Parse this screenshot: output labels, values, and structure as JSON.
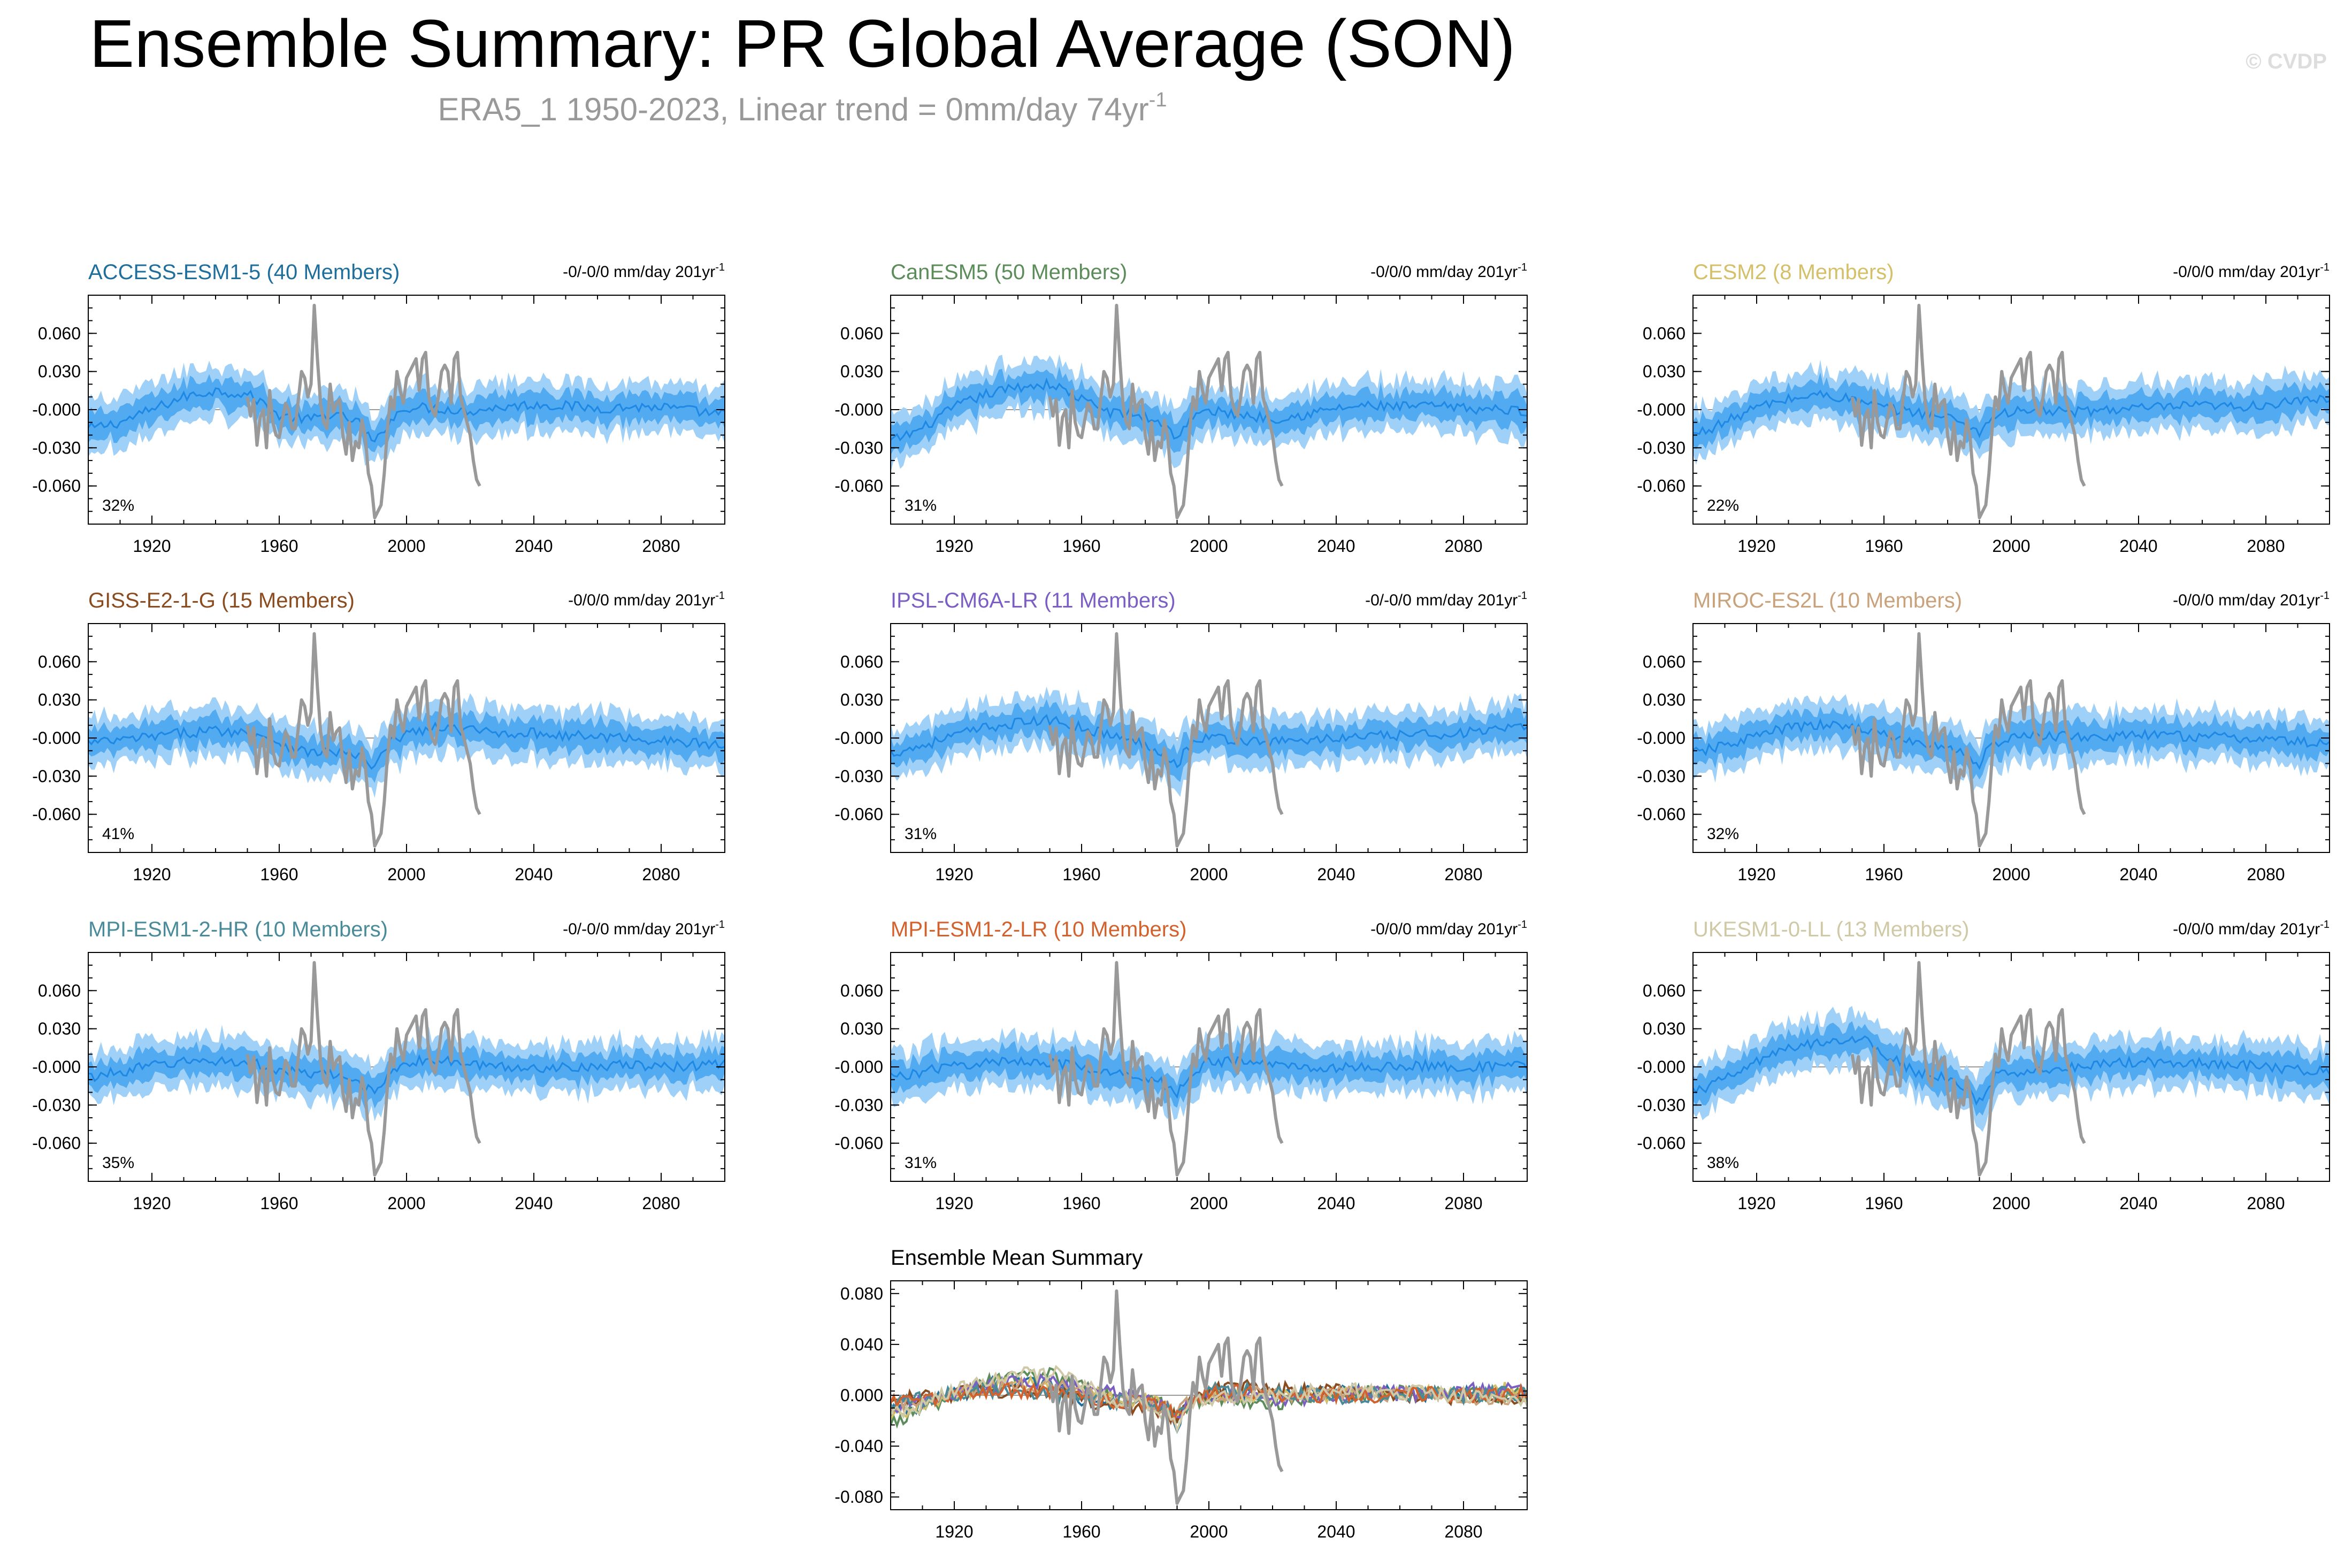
{
  "figure": {
    "title": "Ensemble Summary: PR Global Average (SON)",
    "subtitle_main": "ERA5_1 1950-2023, Linear trend = 0mm/day 74yr",
    "subtitle_sup": "-1",
    "watermark": "© CVDP",
    "trend_units": "mm/day 201yr",
    "trend_sup": "-1",
    "colors": {
      "obs_line": "#999999",
      "spread_outer": "#9fd0f7",
      "spread_inner": "#52aaf0",
      "ens_mean": "#1e88e5",
      "zero_line": "#9a9a9a"
    }
  },
  "chart_data": [
    {
      "type": "area",
      "title": "ACCESS-ESM1-5 (40 Members)",
      "title_color": "#1f6e9c",
      "trend": "-0/-0/0",
      "percent": "32%",
      "x_range": [
        1900,
        2100
      ],
      "y_range": [
        -0.09,
        0.09
      ],
      "y_ticks": [
        "0.060",
        "0.030",
        "-0.000",
        "-0.030",
        "-0.060"
      ],
      "y_tick_values": [
        0.06,
        0.03,
        0,
        -0.03,
        -0.06
      ],
      "x_ticks": [
        1920,
        1960,
        2000,
        2040,
        2080
      ],
      "ensemble_mean": {
        "x": [
          1900,
          1910,
          1920,
          1930,
          1940,
          1950,
          1955,
          1960,
          1970,
          1975,
          1980,
          1985,
          1990,
          1992,
          1995,
          2000,
          2010,
          2020,
          2030,
          2040,
          2050,
          2060,
          2070,
          2080,
          2090,
          2100
        ],
        "y": [
          -0.015,
          -0.01,
          0,
          0.01,
          0.015,
          0.012,
          0.005,
          -0.005,
          -0.008,
          -0.004,
          -0.006,
          -0.01,
          -0.028,
          -0.018,
          -0.008,
          0.002,
          0.001,
          -0.001,
          0.002,
          0.004,
          0.003,
          0.001,
          0.002,
          0.002,
          -0.001,
          -0.004
        ]
      }
    },
    {
      "type": "area",
      "title": "CanESM5 (50 Members)",
      "title_color": "#5b8c5a",
      "trend": "-0/0/0",
      "percent": "31%",
      "x_range": [
        1900,
        2100
      ],
      "y_range": [
        -0.09,
        0.09
      ],
      "y_ticks": [
        "0.060",
        "0.030",
        "-0.000",
        "-0.030",
        "-0.060"
      ],
      "y_tick_values": [
        0.06,
        0.03,
        0,
        -0.03,
        -0.06
      ],
      "x_ticks": [
        1920,
        1960,
        2000,
        2040,
        2080
      ],
      "ensemble_mean": {
        "x": [
          1900,
          1910,
          1920,
          1930,
          1940,
          1950,
          1955,
          1960,
          1970,
          1975,
          1980,
          1985,
          1990,
          1992,
          1995,
          2000,
          2010,
          2020,
          2030,
          2040,
          2050,
          2060,
          2070,
          2080,
          2090,
          2100
        ],
        "y": [
          -0.025,
          -0.015,
          0.002,
          0.012,
          0.018,
          0.02,
          0.015,
          0.008,
          -0.003,
          -0.003,
          -0.006,
          -0.01,
          -0.022,
          -0.014,
          -0.006,
          -0.001,
          -0.004,
          -0.007,
          -0.004,
          0.001,
          0.003,
          0.002,
          0.003,
          0.001,
          0.0,
          -0.001
        ]
      }
    },
    {
      "type": "area",
      "title": "CESM2 (8 Members)",
      "title_color": "#d4c06a",
      "trend": "-0/0/0",
      "percent": "22%",
      "x_range": [
        1900,
        2100
      ],
      "y_range": [
        -0.09,
        0.09
      ],
      "y_ticks": [
        "0.060",
        "0.030",
        "-0.000",
        "-0.030",
        "-0.060"
      ],
      "y_tick_values": [
        0.06,
        0.03,
        0,
        -0.03,
        -0.06
      ],
      "x_ticks": [
        1920,
        1960,
        2000,
        2040,
        2080
      ],
      "ensemble_mean": {
        "x": [
          1900,
          1910,
          1920,
          1930,
          1940,
          1950,
          1955,
          1960,
          1970,
          1975,
          1980,
          1985,
          1990,
          1992,
          1995,
          2000,
          2010,
          2020,
          2030,
          2040,
          2050,
          2060,
          2070,
          2080,
          2090,
          2100
        ],
        "y": [
          -0.02,
          -0.01,
          0.002,
          0.008,
          0.012,
          0.008,
          0.004,
          0.001,
          -0.002,
          -0.004,
          -0.006,
          -0.01,
          -0.018,
          -0.012,
          -0.004,
          -0.002,
          -0.001,
          -0.002,
          0.0,
          0.001,
          0.002,
          0.003,
          0.002,
          0.004,
          0.006,
          0.009
        ]
      }
    },
    {
      "type": "area",
      "title": "GISS-E2-1-G (15 Members)",
      "title_color": "#8a4b1f",
      "trend": "-0/0/0",
      "percent": "41%",
      "x_range": [
        1900,
        2100
      ],
      "y_range": [
        -0.09,
        0.09
      ],
      "y_ticks": [
        "0.060",
        "0.030",
        "-0.000",
        "-0.030",
        "-0.060"
      ],
      "y_tick_values": [
        0.06,
        0.03,
        0,
        -0.03,
        -0.06
      ],
      "x_ticks": [
        1920,
        1960,
        2000,
        2040,
        2080
      ],
      "ensemble_mean": {
        "x": [
          1900,
          1910,
          1920,
          1930,
          1940,
          1950,
          1955,
          1960,
          1970,
          1975,
          1980,
          1985,
          1990,
          1992,
          1995,
          2000,
          2010,
          2020,
          2030,
          2040,
          2050,
          2060,
          2070,
          2080,
          2090,
          2100
        ],
        "y": [
          -0.004,
          -0.002,
          0.001,
          0.004,
          0.006,
          0.004,
          0.002,
          -0.004,
          -0.012,
          -0.01,
          -0.012,
          -0.014,
          -0.024,
          -0.014,
          -0.004,
          0.004,
          0.008,
          0.006,
          0.004,
          0.004,
          0.002,
          0.001,
          0.0,
          -0.002,
          -0.004,
          -0.006
        ]
      }
    },
    {
      "type": "area",
      "title": "IPSL-CM6A-LR (11 Members)",
      "title_color": "#7b5ec4",
      "trend": "-0/-0/0",
      "percent": "31%",
      "x_range": [
        1900,
        2100
      ],
      "y_range": [
        -0.09,
        0.09
      ],
      "y_ticks": [
        "0.060",
        "0.030",
        "-0.000",
        "-0.030",
        "-0.060"
      ],
      "y_tick_values": [
        0.06,
        0.03,
        0,
        -0.03,
        -0.06
      ],
      "x_ticks": [
        1920,
        1960,
        2000,
        2040,
        2080
      ],
      "ensemble_mean": {
        "x": [
          1900,
          1910,
          1920,
          1930,
          1940,
          1950,
          1955,
          1960,
          1970,
          1975,
          1980,
          1985,
          1990,
          1992,
          1995,
          2000,
          2010,
          2020,
          2030,
          2040,
          2050,
          2060,
          2070,
          2080,
          2090,
          2100
        ],
        "y": [
          -0.012,
          -0.006,
          0.002,
          0.008,
          0.012,
          0.014,
          0.012,
          0.008,
          0.002,
          -0.002,
          -0.005,
          -0.01,
          -0.022,
          -0.012,
          -0.004,
          0.001,
          -0.002,
          -0.003,
          -0.002,
          0.0,
          0.001,
          0.002,
          0.003,
          0.004,
          0.006,
          0.008
        ]
      }
    },
    {
      "type": "area",
      "title": "MIROC-ES2L (10 Members)",
      "title_color": "#c9a17a",
      "trend": "-0/0/0",
      "percent": "32%",
      "x_range": [
        1900,
        2100
      ],
      "y_range": [
        -0.09,
        0.09
      ],
      "y_ticks": [
        "0.060",
        "0.030",
        "-0.000",
        "-0.030",
        "-0.060"
      ],
      "y_tick_values": [
        0.06,
        0.03,
        0,
        -0.03,
        -0.06
      ],
      "x_ticks": [
        1920,
        1960,
        2000,
        2040,
        2080
      ],
      "ensemble_mean": {
        "x": [
          1900,
          1910,
          1920,
          1930,
          1940,
          1950,
          1955,
          1960,
          1970,
          1975,
          1980,
          1985,
          1990,
          1992,
          1995,
          2000,
          2010,
          2020,
          2030,
          2040,
          2050,
          2060,
          2070,
          2080,
          2090,
          2100
        ],
        "y": [
          -0.012,
          -0.006,
          0.002,
          0.008,
          0.01,
          0.009,
          0.006,
          0.002,
          -0.004,
          -0.006,
          -0.008,
          -0.012,
          -0.02,
          -0.012,
          -0.004,
          0.0,
          0.002,
          0.001,
          0.001,
          0.002,
          0.002,
          0.001,
          0.0,
          -0.001,
          -0.003,
          -0.005
        ]
      }
    },
    {
      "type": "area",
      "title": "MPI-ESM1-2-HR (10 Members)",
      "title_color": "#4a8b9a",
      "trend": "-0/-0/0",
      "percent": "35%",
      "x_range": [
        1900,
        2100
      ],
      "y_range": [
        -0.09,
        0.09
      ],
      "y_ticks": [
        "0.060",
        "0.030",
        "-0.000",
        "-0.030",
        "-0.060"
      ],
      "y_tick_values": [
        0.06,
        0.03,
        0,
        -0.03,
        -0.06
      ],
      "x_ticks": [
        1920,
        1960,
        2000,
        2040,
        2080
      ],
      "ensemble_mean": {
        "x": [
          1900,
          1910,
          1920,
          1930,
          1940,
          1950,
          1955,
          1960,
          1970,
          1975,
          1980,
          1985,
          1990,
          1992,
          1995,
          2000,
          2010,
          2020,
          2030,
          2040,
          2050,
          2060,
          2070,
          2080,
          2090,
          2100
        ],
        "y": [
          -0.008,
          -0.004,
          0.001,
          0.004,
          0.005,
          0.003,
          0.001,
          -0.003,
          -0.006,
          -0.006,
          -0.008,
          -0.012,
          -0.022,
          -0.012,
          -0.004,
          0.004,
          0.005,
          0.002,
          0.0,
          -0.001,
          0.0,
          0.001,
          0.001,
          0.0,
          0.001,
          0.002
        ]
      }
    },
    {
      "type": "area",
      "title": "MPI-ESM1-2-LR (10 Members)",
      "title_color": "#d2622d",
      "trend": "-0/0/0",
      "percent": "31%",
      "x_range": [
        1900,
        2100
      ],
      "y_range": [
        -0.09,
        0.09
      ],
      "y_ticks": [
        "0.060",
        "0.030",
        "-0.000",
        "-0.030",
        "-0.060"
      ],
      "y_tick_values": [
        0.06,
        0.03,
        0,
        -0.03,
        -0.06
      ],
      "x_ticks": [
        1920,
        1960,
        2000,
        2040,
        2080
      ],
      "ensemble_mean": {
        "x": [
          1900,
          1910,
          1920,
          1930,
          1940,
          1950,
          1955,
          1960,
          1970,
          1975,
          1980,
          1985,
          1990,
          1992,
          1995,
          2000,
          2010,
          2020,
          2030,
          2040,
          2050,
          2060,
          2070,
          2080,
          2090,
          2100
        ],
        "y": [
          -0.008,
          -0.004,
          0.001,
          0.003,
          0.005,
          0.004,
          0.002,
          -0.002,
          -0.006,
          -0.005,
          -0.008,
          -0.012,
          -0.022,
          -0.012,
          -0.004,
          0.004,
          0.004,
          0.002,
          0.0,
          -0.001,
          0.0,
          0.0,
          0.001,
          0.0,
          0.0,
          0.001
        ]
      }
    },
    {
      "type": "area",
      "title": "UKESM1-0-LL (13 Members)",
      "title_color": "#cfc9a6",
      "trend": "-0/0/0",
      "percent": "38%",
      "x_range": [
        1900,
        2100
      ],
      "y_range": [
        -0.09,
        0.09
      ],
      "y_ticks": [
        "0.060",
        "0.030",
        "-0.000",
        "-0.030",
        "-0.060"
      ],
      "y_tick_values": [
        0.06,
        0.03,
        0,
        -0.03,
        -0.06
      ],
      "x_ticks": [
        1920,
        1960,
        2000,
        2040,
        2080
      ],
      "ensemble_mean": {
        "x": [
          1900,
          1910,
          1920,
          1930,
          1940,
          1950,
          1955,
          1960,
          1970,
          1975,
          1980,
          1985,
          1990,
          1992,
          1995,
          2000,
          2010,
          2020,
          2030,
          2040,
          2050,
          2060,
          2070,
          2080,
          2090,
          2100
        ],
        "y": [
          -0.02,
          -0.01,
          0.004,
          0.014,
          0.02,
          0.022,
          0.02,
          0.01,
          -0.004,
          -0.006,
          -0.01,
          -0.016,
          -0.028,
          -0.018,
          -0.008,
          -0.004,
          -0.002,
          0.0,
          0.003,
          0.004,
          0.004,
          0.003,
          0.002,
          0.0,
          -0.002,
          -0.004
        ]
      }
    },
    {
      "type": "line",
      "title": "Ensemble Mean Summary",
      "title_color": "#000000",
      "x_range": [
        1900,
        2100
      ],
      "y_range": [
        -0.09,
        0.09
      ],
      "y_ticks": [
        "0.080",
        "0.040",
        "0.000",
        "-0.040",
        "-0.080"
      ],
      "y_tick_values": [
        0.08,
        0.04,
        0,
        -0.04,
        -0.08
      ],
      "x_ticks": [
        1920,
        1960,
        2000,
        2040,
        2080
      ],
      "series_colors": [
        "#1f6e9c",
        "#5b8c5a",
        "#d4c06a",
        "#8a4b1f",
        "#7b5ec4",
        "#c9a17a",
        "#4a8b9a",
        "#d2622d",
        "#cfc9a6"
      ]
    }
  ],
  "observations": {
    "name": "ERA5_1",
    "x": [
      1950,
      1951,
      1952,
      1953,
      1954,
      1955,
      1956,
      1957,
      1958,
      1959,
      1960,
      1961,
      1962,
      1963,
      1964,
      1965,
      1966,
      1967,
      1968,
      1969,
      1970,
      1971,
      1972,
      1973,
      1974,
      1975,
      1976,
      1977,
      1978,
      1979,
      1980,
      1981,
      1982,
      1983,
      1984,
      1985,
      1986,
      1987,
      1988,
      1989,
      1990,
      1991,
      1992,
      1993,
      1994,
      1995,
      1996,
      1997,
      1998,
      1999,
      2000,
      2001,
      2002,
      2003,
      2004,
      2005,
      2006,
      2007,
      2008,
      2009,
      2010,
      2011,
      2012,
      2013,
      2014,
      2015,
      2016,
      2017,
      2018,
      2019,
      2020,
      2021,
      2022,
      2023
    ],
    "y": [
      0.01,
      -0.005,
      0.008,
      -0.028,
      -0.006,
      0.0,
      -0.03,
      0.015,
      -0.01,
      -0.02,
      -0.022,
      -0.008,
      0.005,
      0.0,
      -0.015,
      -0.015,
      0.008,
      0.03,
      0.025,
      0.01,
      0.02,
      0.082,
      0.04,
      0.005,
      -0.01,
      -0.015,
      0.02,
      -0.002,
      0.005,
      0.008,
      -0.02,
      -0.035,
      -0.01,
      -0.04,
      -0.025,
      -0.03,
      -0.008,
      -0.02,
      -0.05,
      -0.06,
      -0.085,
      -0.08,
      -0.075,
      -0.05,
      -0.015,
      0.01,
      0.0,
      0.03,
      0.015,
      0.005,
      0.025,
      0.03,
      0.035,
      0.04,
      0.015,
      0.04,
      0.045,
      0.01,
      0.0,
      -0.005,
      0.01,
      0.03,
      0.035,
      0.03,
      0.005,
      0.04,
      0.045,
      0.01,
      0.0,
      -0.01,
      -0.02,
      -0.04,
      -0.055,
      -0.06
    ]
  }
}
